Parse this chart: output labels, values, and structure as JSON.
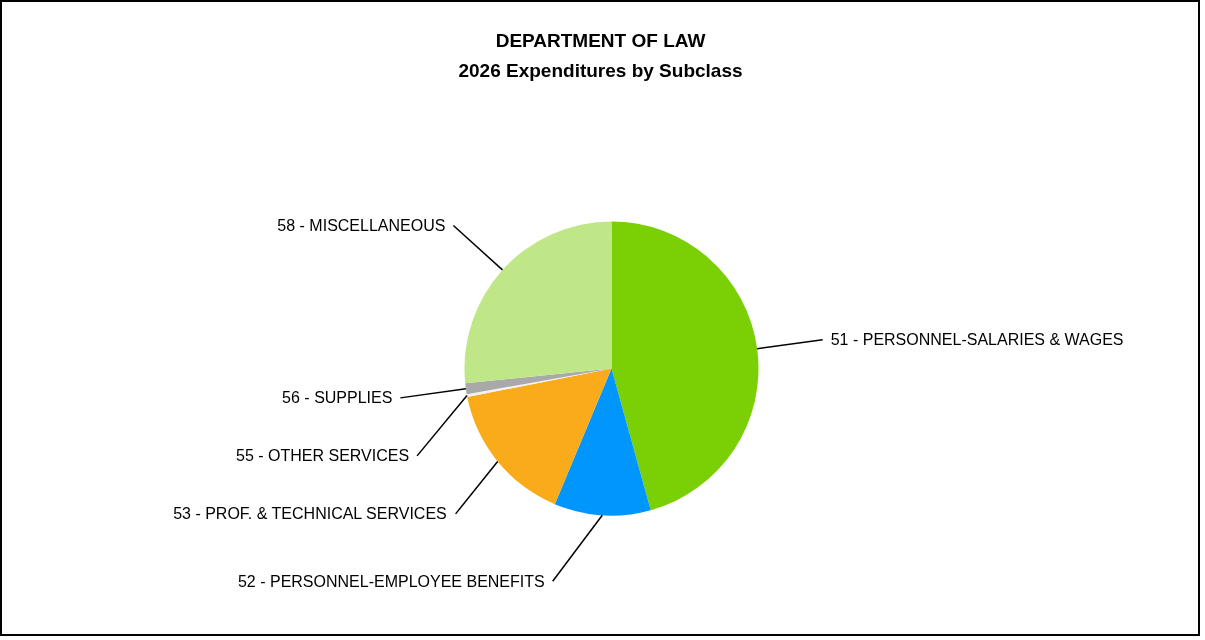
{
  "chart_data": {
    "type": "pie",
    "title": "DEPARTMENT OF LAW",
    "subtitle": "2026 Expenditures by Subclass",
    "categories": [
      "51 - PERSONNEL-SALARIES & WAGES",
      "52 - PERSONNEL-EMPLOYEE BENEFITS",
      "53 - PROF. & TECHNICAL SERVICES",
      "55 - OTHER SERVICES",
      "56 - SUPPLIES",
      "58 - MISCELLANEOUS"
    ],
    "values": [
      45.7,
      10.6,
      15.6,
      0.3,
      1.2,
      26.6
    ],
    "colors": [
      "#7acf05",
      "#0096fc",
      "#f9ab1a",
      "#f2f2f2",
      "#a9a9a9",
      "#bfe787"
    ]
  }
}
